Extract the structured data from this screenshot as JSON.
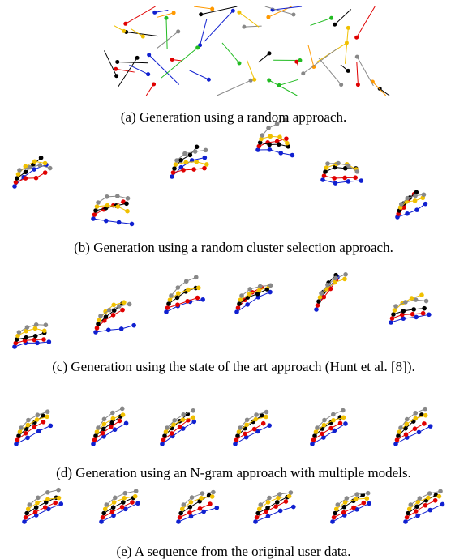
{
  "figure": {
    "captions": [
      "(a) Generation using a random approach.",
      "(b) Generation using a random cluster selection approach.",
      "(c) Generation using the state of the art approach (Hunt et al. [8]).",
      "(d) Generation using an N-gram approach with multiple models.",
      "(e) A sequence from the original user data."
    ]
  }
}
